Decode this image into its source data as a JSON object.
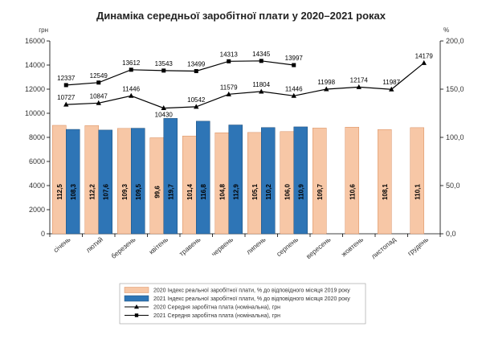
{
  "chart_data": {
    "type": "bar",
    "title": "Динаміка середньої заробітної плати у 2020–2021 роках",
    "ylabel_left": "грн",
    "ylabel_right": "%",
    "ylim_left": [
      0,
      16000
    ],
    "yticks_left": [
      "0",
      "2000",
      "4000",
      "6000",
      "8000",
      "10000",
      "12000",
      "14000",
      "16000"
    ],
    "ylim_right": [
      0,
      200
    ],
    "yticks_right": [
      "0,0",
      "50,0",
      "100,0",
      "150,0",
      "200,0"
    ],
    "categories": [
      "січень",
      "лютий",
      "березень",
      "квітень",
      "травень",
      "червень",
      "липень",
      "серпень",
      "вересень",
      "жовтень",
      "листопад",
      "грудень"
    ],
    "grid": false,
    "legend_position": "bottom",
    "series": [
      {
        "name": "2020 Індекс реальної заробітної плати, % до відповідного місяця 2019 року",
        "kind": "bar",
        "axis": "right",
        "color": "#f7c7a6",
        "border": "#d88c5c",
        "values": [
          112.5,
          112.2,
          109.3,
          99.6,
          101.4,
          104.8,
          105.1,
          106.0,
          109.7,
          110.6,
          108.1,
          110.1
        ],
        "labels": [
          "112,5",
          "112,2",
          "109,3",
          "99,6",
          "101,4",
          "104,8",
          "105,1",
          "106,0",
          "109,7",
          "110,6",
          "108,1",
          "110,1"
        ]
      },
      {
        "name": "2021 Індекс реальної заробітної плати, % до відповідного місяця 2020 року",
        "kind": "bar",
        "axis": "right",
        "color": "#2e75b6",
        "border": "#1f4e79",
        "values": [
          108.3,
          107.6,
          109.5,
          119.7,
          116.8,
          112.9,
          110.2,
          110.9,
          null,
          null,
          null,
          null
        ],
        "labels": [
          "108,3",
          "107,6",
          "109,5",
          "119,7",
          "116,8",
          "112,9",
          "110,2",
          "110,9",
          "",
          "",
          "",
          ""
        ]
      },
      {
        "name": "2020 Середня заробітна плата (номінальна), грн",
        "kind": "line",
        "marker": "triangle",
        "axis": "left",
        "color": "#000000",
        "values": [
          10727,
          10847,
          11446,
          10430,
          10542,
          11579,
          11804,
          11446,
          11998,
          12174,
          11987,
          14179
        ],
        "labels": [
          "10727",
          "10847",
          "11446",
          "10430",
          "10542",
          "11579",
          "11804",
          "11446",
          "11998",
          "12174",
          "11987",
          "14179"
        ]
      },
      {
        "name": "2021 Середня заробітна плата (номінальна), грн",
        "kind": "line",
        "marker": "square",
        "axis": "left",
        "color": "#000000",
        "values": [
          12337,
          12549,
          13612,
          13543,
          13499,
          14313,
          14345,
          13997,
          null,
          null,
          null,
          null
        ],
        "labels": [
          "12337",
          "12549",
          "13612",
          "13543",
          "13499",
          "14313",
          "14345",
          "13997",
          "",
          "",
          "",
          ""
        ]
      }
    ]
  }
}
